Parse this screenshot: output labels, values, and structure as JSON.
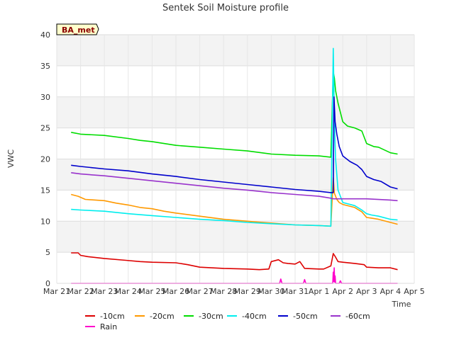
{
  "chart_data": {
    "type": "line",
    "title": "Sentek Soil Moisture profile",
    "xlabel": "Time",
    "ylabel": "VWC",
    "site_badge": "BA_met",
    "ylim": [
      0,
      40
    ],
    "yticks": [
      0,
      5,
      10,
      15,
      20,
      25,
      30,
      35,
      40
    ],
    "xlim": [
      0,
      15
    ],
    "xticks": [
      {
        "x": 0,
        "label": "Mar 21"
      },
      {
        "x": 1,
        "label": "Mar 22"
      },
      {
        "x": 2,
        "label": "Mar 23"
      },
      {
        "x": 3,
        "label": "Mar 24"
      },
      {
        "x": 4,
        "label": "Mar 25"
      },
      {
        "x": 5,
        "label": "Mar 26"
      },
      {
        "x": 6,
        "label": "Mar 27"
      },
      {
        "x": 7,
        "label": "Mar 28"
      },
      {
        "x": 8,
        "label": "Mar 29"
      },
      {
        "x": 9,
        "label": "Mar 30"
      },
      {
        "x": 10,
        "label": "Mar 31"
      },
      {
        "x": 11,
        "label": "Apr 1"
      },
      {
        "x": 12,
        "label": "Apr 2"
      },
      {
        "x": 13,
        "label": "Apr 3"
      },
      {
        "x": 14,
        "label": "Apr 4"
      },
      {
        "x": 15,
        "label": "Apr 5"
      }
    ],
    "grid": true,
    "legend_position": "bottom",
    "series": [
      {
        "name": "-10cm",
        "color": "#dd0000",
        "x": [
          0.6,
          0.9,
          1.0,
          1.3,
          2.0,
          2.9,
          3.5,
          4.0,
          5.0,
          5.5,
          6.0,
          7.0,
          8.0,
          8.5,
          8.9,
          9.0,
          9.3,
          9.5,
          9.7,
          10.0,
          10.2,
          10.4,
          11.0,
          11.2,
          11.5,
          11.6,
          11.7,
          11.8,
          12.0,
          12.5,
          12.9,
          13.0,
          13.5,
          14.0,
          14.3
        ],
        "y": [
          4.9,
          4.9,
          4.5,
          4.3,
          4.0,
          3.7,
          3.5,
          3.4,
          3.3,
          3.0,
          2.6,
          2.4,
          2.3,
          2.2,
          2.3,
          3.5,
          3.8,
          3.3,
          3.2,
          3.1,
          3.5,
          2.4,
          2.3,
          2.3,
          2.8,
          4.8,
          4.2,
          3.5,
          3.4,
          3.2,
          3.0,
          2.6,
          2.5,
          2.5,
          2.2
        ]
      },
      {
        "name": "-20cm",
        "color": "#ff9900",
        "x": [
          0.6,
          0.9,
          1.2,
          2.0,
          2.5,
          3.0,
          3.5,
          4.0,
          4.5,
          5.0,
          6.0,
          7.0,
          8.0,
          9.0,
          10.0,
          11.0,
          11.5,
          11.6,
          11.65,
          11.75,
          11.85,
          12.0,
          12.5,
          12.8,
          13.0,
          13.2,
          13.5,
          14.0,
          14.3
        ],
        "y": [
          14.3,
          14.0,
          13.5,
          13.3,
          12.9,
          12.6,
          12.2,
          12.0,
          11.6,
          11.3,
          10.8,
          10.3,
          10.0,
          9.7,
          9.4,
          9.3,
          9.2,
          17.0,
          14.5,
          13.5,
          13.0,
          12.7,
          12.2,
          11.5,
          10.6,
          10.5,
          10.3,
          9.8,
          9.5
        ]
      },
      {
        "name": "-30cm",
        "color": "#00dd00",
        "x": [
          0.6,
          1.0,
          2.0,
          3.0,
          3.5,
          4.0,
          5.0,
          6.0,
          7.0,
          8.0,
          9.0,
          10.0,
          11.0,
          11.5,
          11.6,
          11.65,
          11.7,
          11.75,
          11.8,
          12.0,
          12.2,
          12.5,
          12.8,
          13.0,
          13.3,
          13.5,
          14.0,
          14.3
        ],
        "y": [
          24.3,
          24.0,
          23.8,
          23.3,
          23.0,
          22.8,
          22.2,
          21.9,
          21.6,
          21.3,
          20.8,
          20.6,
          20.5,
          20.3,
          34.0,
          33.0,
          31.0,
          30.0,
          29.0,
          26.0,
          25.3,
          25.0,
          24.5,
          22.5,
          22.0,
          21.9,
          21.0,
          20.8
        ]
      },
      {
        "name": "-40cm",
        "color": "#00eeee",
        "x": [
          0.6,
          1.0,
          2.0,
          3.0,
          4.0,
          5.0,
          6.0,
          7.0,
          8.0,
          9.0,
          10.0,
          11.0,
          11.5,
          11.6,
          11.65,
          11.7,
          11.8,
          12.0,
          12.5,
          12.8,
          13.0,
          13.2,
          13.5,
          14.0,
          14.3
        ],
        "y": [
          11.9,
          11.8,
          11.6,
          11.2,
          10.9,
          10.6,
          10.3,
          10.1,
          9.8,
          9.6,
          9.4,
          9.3,
          9.2,
          37.8,
          26.0,
          20.0,
          15.0,
          13.0,
          12.5,
          11.8,
          11.2,
          11.0,
          10.8,
          10.3,
          10.2
        ]
      },
      {
        "name": "-50cm",
        "color": "#0000cc",
        "x": [
          0.6,
          1.0,
          2.0,
          3.0,
          4.0,
          5.0,
          6.0,
          7.0,
          8.0,
          9.0,
          10.0,
          11.0,
          11.5,
          11.6,
          11.63,
          11.68,
          11.75,
          11.85,
          12.0,
          12.3,
          12.6,
          12.8,
          13.0,
          13.3,
          13.6,
          14.0,
          14.3
        ],
        "y": [
          19.0,
          18.8,
          18.4,
          18.1,
          17.6,
          17.2,
          16.7,
          16.3,
          15.9,
          15.5,
          15.1,
          14.8,
          14.6,
          14.6,
          30.0,
          26.0,
          24.0,
          22.0,
          20.5,
          19.6,
          19.0,
          18.3,
          17.2,
          16.7,
          16.4,
          15.5,
          15.2
        ]
      },
      {
        "name": "-60cm",
        "color": "#9933cc",
        "x": [
          0.6,
          1.0,
          2.0,
          3.0,
          4.0,
          5.0,
          6.0,
          7.0,
          8.0,
          9.0,
          10.0,
          11.0,
          11.5,
          11.6,
          12.0,
          13.0,
          14.0,
          14.3
        ],
        "y": [
          17.8,
          17.6,
          17.3,
          16.9,
          16.5,
          16.1,
          15.7,
          15.3,
          15.0,
          14.6,
          14.3,
          14.0,
          13.7,
          13.6,
          13.6,
          13.6,
          13.4,
          13.3
        ]
      },
      {
        "name": "Rain",
        "color": "#ff00cc",
        "x": [
          0.6,
          9.35,
          9.4,
          9.45,
          10.35,
          10.4,
          10.45,
          11.58,
          11.6,
          11.62,
          11.64,
          11.66,
          11.68,
          11.7,
          11.72,
          11.85,
          11.9,
          11.95,
          14.3
        ],
        "y": [
          0,
          0,
          0.7,
          0,
          0,
          0.6,
          0,
          0,
          1.8,
          0.3,
          2.5,
          0.2,
          1.2,
          0,
          0,
          0,
          0.4,
          0,
          0
        ]
      }
    ]
  }
}
